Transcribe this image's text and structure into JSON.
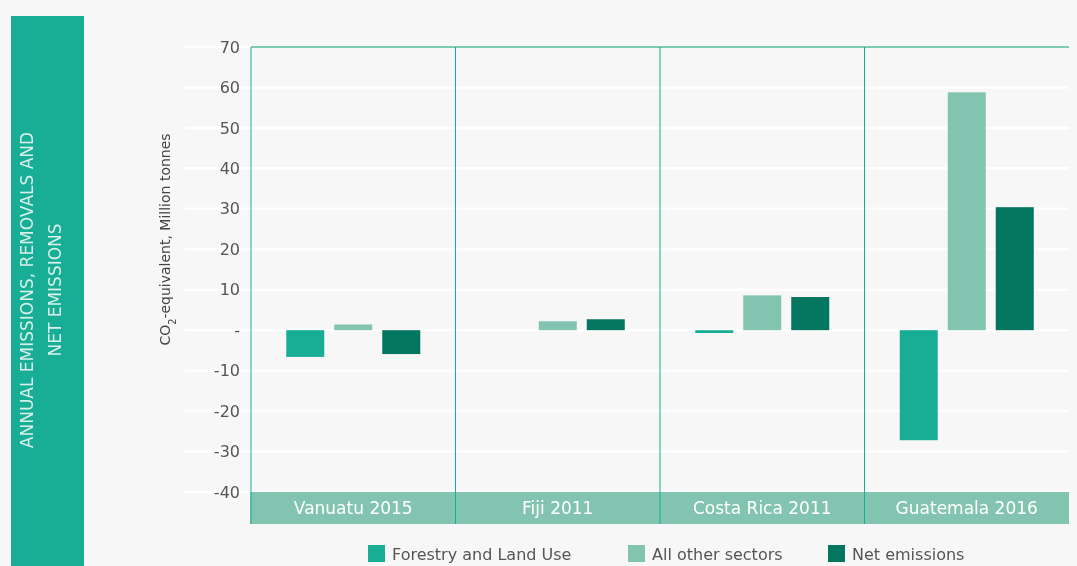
{
  "chart_data": {
    "type": "bar",
    "title": "ANNUAL EMISSIONS, REMOVALS AND NET EMISSIONS",
    "ylabel": "CO$_{2}$-equivalent, Million tonnes",
    "categories": [
      "Vanuatu 2015",
      "Fiji 2011",
      "Costa Rica 2011",
      "Guatemala 2016"
    ],
    "series": [
      {
        "name": "Forestry and Land Use",
        "color": "#17ae95",
        "values": [
          -6.6,
          null,
          -0.7,
          -27.2
        ]
      },
      {
        "name": "All other sectors",
        "color": "#82c4b0",
        "values": [
          1.4,
          2.2,
          8.6,
          58.8
        ]
      },
      {
        "name": "Net emissions",
        "color": "#03765f",
        "values": [
          -5.9,
          2.7,
          8.2,
          30.4
        ]
      }
    ],
    "ylim": [
      -40,
      70
    ],
    "yticks": [
      -40,
      -30,
      -20,
      -10,
      {
        "value": 0,
        "label": "-"
      },
      10,
      20,
      30,
      40,
      50,
      60,
      70
    ],
    "grid": "y",
    "legend": "bottom"
  }
}
